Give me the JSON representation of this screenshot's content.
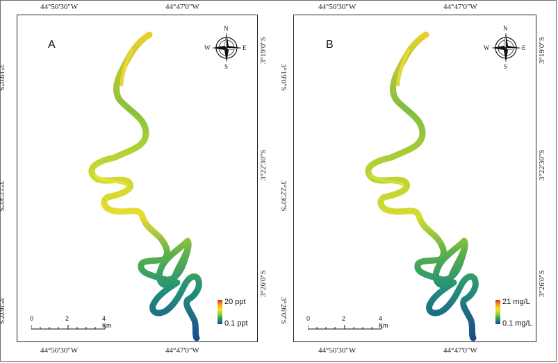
{
  "coordinates": {
    "top_left": "44°50'30\"W",
    "top_right": "44°47'0\"W",
    "bottom_left": "44°50'30\"W",
    "bottom_right": "44°47'0\"W",
    "lat_top": "3°19'0\"S",
    "lat_mid": "3°22'30\"S",
    "lat_bot": "3°26'0\"S"
  },
  "panels": [
    {
      "letter": "A",
      "legend_max": "20 ppt",
      "legend_min": "0.1 ppt"
    },
    {
      "letter": "B",
      "legend_max": "21 mg/L",
      "legend_min": "0.1 mg/L"
    }
  ],
  "scale": {
    "t0": "0",
    "t2": "2",
    "t4": "4 Km"
  },
  "compass": {
    "n": "N",
    "s": "S",
    "e": "E",
    "w": "W"
  },
  "colors": {
    "high": "#d7261b",
    "mid_high": "#f3e61e",
    "mid": "#93c83d",
    "mid_low": "#2aa558",
    "low": "#173f8a"
  }
}
